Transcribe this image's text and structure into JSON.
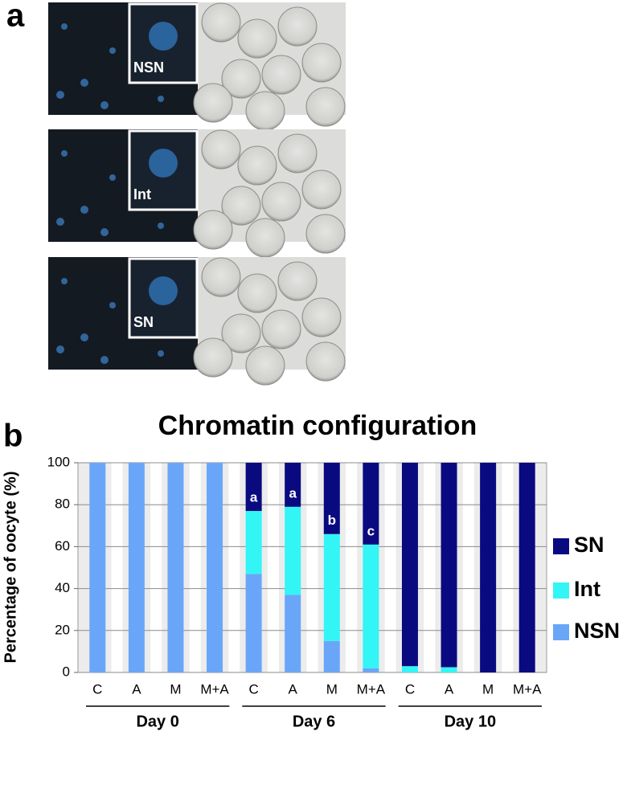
{
  "panel_a": {
    "label": "a",
    "insets": [
      "NSN",
      "Int",
      "SN"
    ]
  },
  "panel_b_label": "b",
  "chart_data": {
    "type": "stacked_bar",
    "title": "Chromatin configuration",
    "ylabel": "Percentage of oocyte (%)",
    "categories": [
      "C",
      "A",
      "M",
      "M+A",
      "C",
      "A",
      "M",
      "M+A",
      "C",
      "A",
      "M",
      "M+A"
    ],
    "groups": [
      "Day 0",
      "Day 6",
      "Day 10"
    ],
    "series": [
      {
        "name": "NSN",
        "color": "#6aa6f8",
        "values": [
          100,
          100,
          100,
          100,
          47,
          37,
          15,
          2,
          0,
          0,
          0,
          0
        ]
      },
      {
        "name": "Int",
        "color": "#33f5f5",
        "values": [
          0,
          0,
          0,
          0,
          30,
          42,
          51,
          59,
          3,
          2.5,
          0,
          0
        ]
      },
      {
        "name": "SN",
        "color": "#0a0a80",
        "values": [
          0,
          0,
          0,
          0,
          23,
          21,
          34,
          39,
          97,
          97.5,
          100,
          100
        ]
      }
    ],
    "bar_labels": [
      null,
      null,
      null,
      null,
      "a",
      "a",
      "b",
      "c",
      null,
      null,
      null,
      null
    ],
    "ylim": [
      0,
      100
    ],
    "yticks": [
      0,
      20,
      40,
      60,
      80,
      100
    ],
    "grid": true,
    "legend": "right"
  }
}
